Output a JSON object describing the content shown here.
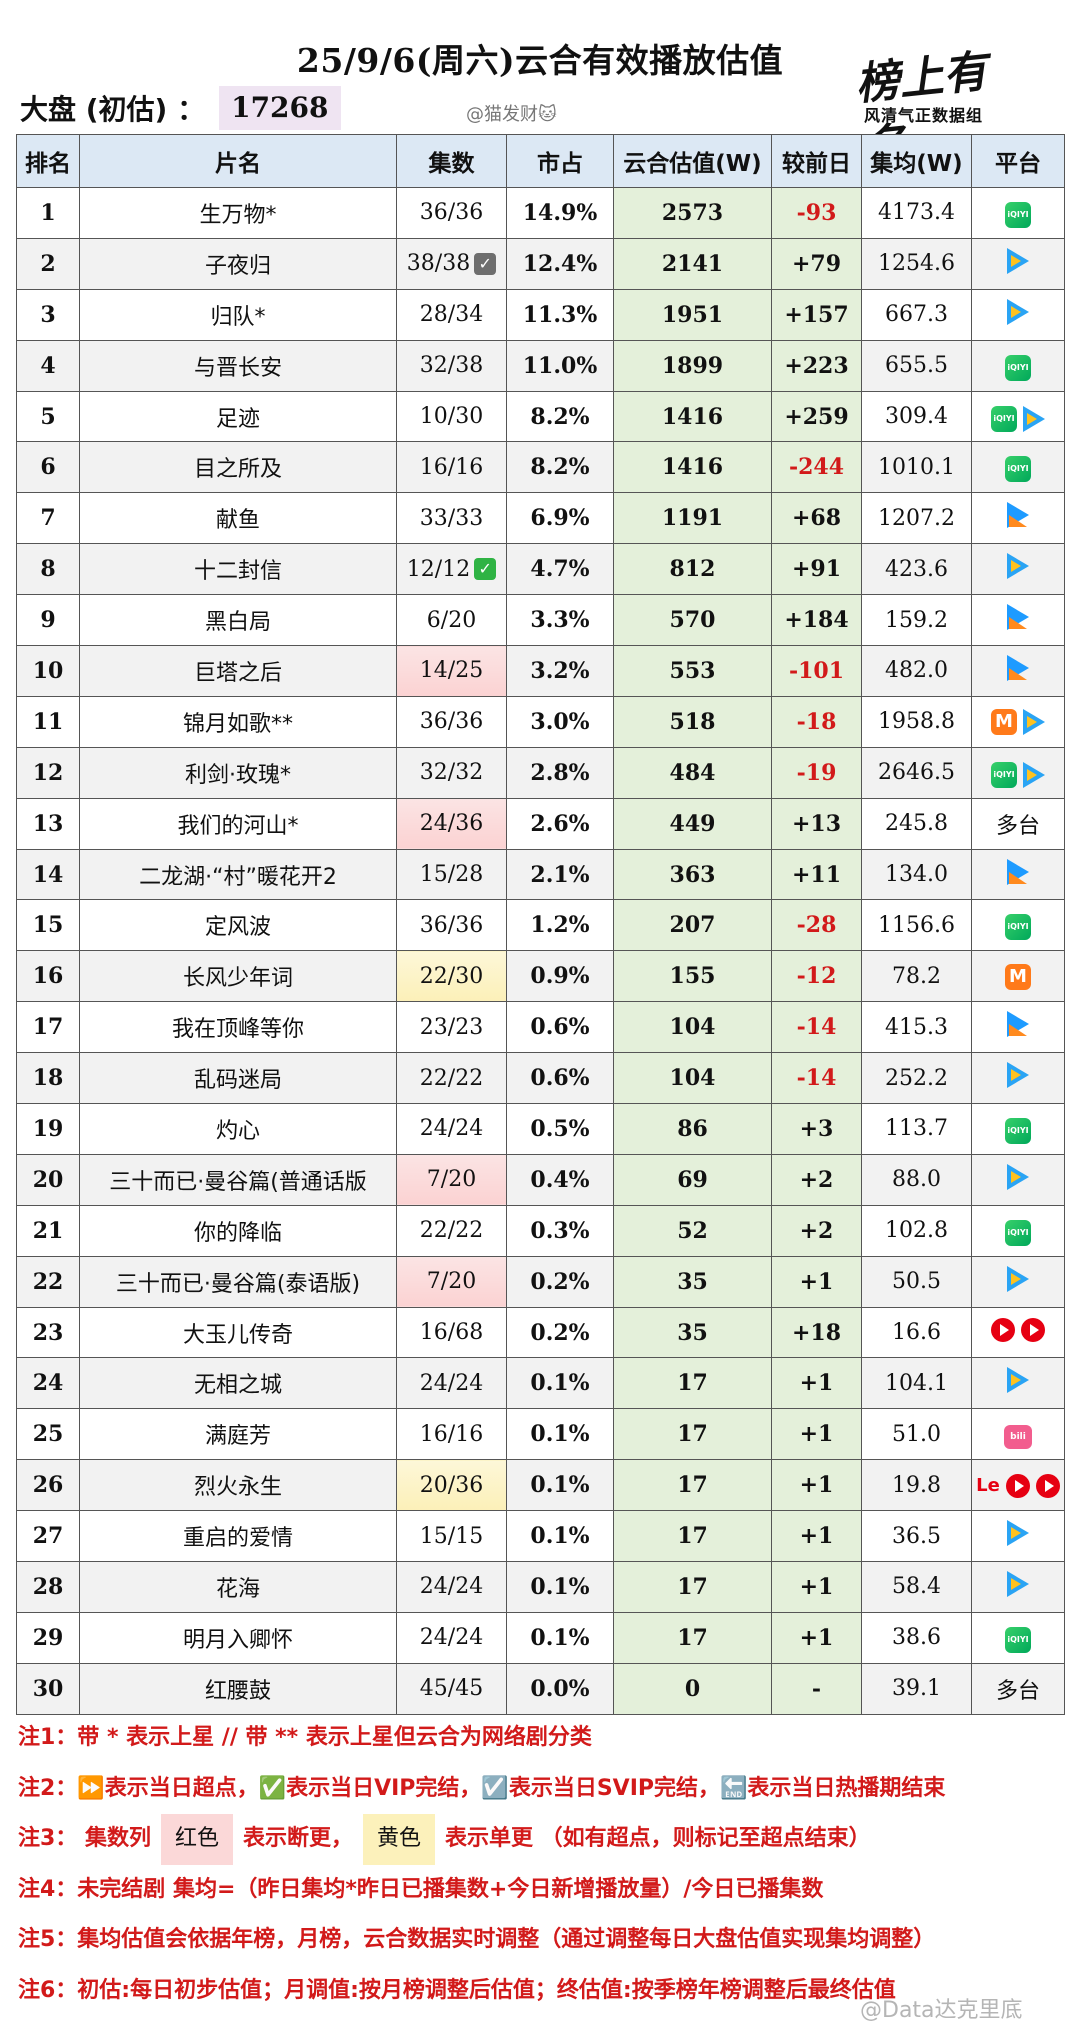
{
  "header": {
    "title": "25/9/6(周六)云合有效播放估值",
    "summary_label": "大盘 (初估) ：",
    "summary_value": "17268",
    "watermark": "@猫发财🐱",
    "logo_script": "榜上有名",
    "logo_sub": "风清气正数据组"
  },
  "table": {
    "columns": [
      "排名",
      "片名",
      "集数",
      "市占",
      "云合估值(W)",
      "较前日",
      "集均(W)",
      "平台"
    ],
    "rows": [
      {
        "rank": "1",
        "name": "生万物*",
        "episodes": "36/36",
        "share": "14.9%",
        "value": "2573",
        "diff": "-93",
        "avg": "4173.4",
        "platforms": [
          "iqiyi-icon"
        ]
      },
      {
        "rank": "2",
        "name": "子夜归",
        "episodes": "38/38",
        "ep_mark": "gray-check",
        "share": "12.4%",
        "value": "2141",
        "diff": "+79",
        "avg": "1254.6",
        "platforms": [
          "tencent-video-icon"
        ]
      },
      {
        "rank": "3",
        "name": "归队*",
        "episodes": "28/34",
        "share": "11.3%",
        "value": "1951",
        "diff": "+157",
        "avg": "667.3",
        "platforms": [
          "tencent-video-icon"
        ]
      },
      {
        "rank": "4",
        "name": "与晋长安",
        "episodes": "32/38",
        "share": "11.0%",
        "value": "1899",
        "diff": "+223",
        "avg": "655.5",
        "platforms": [
          "iqiyi-icon"
        ]
      },
      {
        "rank": "5",
        "name": "足迹",
        "episodes": "10/30",
        "share": "8.2%",
        "value": "1416",
        "diff": "+259",
        "avg": "309.4",
        "platforms": [
          "iqiyi-icon",
          "tencent-video-icon"
        ]
      },
      {
        "rank": "6",
        "name": "目之所及",
        "episodes": "16/16",
        "share": "8.2%",
        "value": "1416",
        "diff": "-244",
        "avg": "1010.1",
        "platforms": [
          "iqiyi-icon"
        ]
      },
      {
        "rank": "7",
        "name": "献鱼",
        "episodes": "33/33",
        "share": "6.9%",
        "value": "1191",
        "diff": "+68",
        "avg": "1207.2",
        "platforms": [
          "youku-icon"
        ]
      },
      {
        "rank": "8",
        "name": "十二封信",
        "episodes": "12/12",
        "ep_mark": "green-check",
        "share": "4.7%",
        "value": "812",
        "diff": "+91",
        "avg": "423.6",
        "platforms": [
          "tencent-video-icon"
        ]
      },
      {
        "rank": "9",
        "name": "黑白局",
        "episodes": "6/20",
        "share": "3.3%",
        "value": "570",
        "diff": "+184",
        "avg": "159.2",
        "platforms": [
          "youku-icon"
        ]
      },
      {
        "rank": "10",
        "name": "巨塔之后",
        "episodes": "14/25",
        "ep_color": "red",
        "share": "3.2%",
        "value": "553",
        "diff": "-101",
        "avg": "482.0",
        "platforms": [
          "youku-icon"
        ]
      },
      {
        "rank": "11",
        "name": "锦月如歌**",
        "episodes": "36/36",
        "share": "3.0%",
        "value": "518",
        "diff": "-18",
        "avg": "1958.8",
        "platforms": [
          "mango-tv-icon",
          "tencent-video-icon"
        ]
      },
      {
        "rank": "12",
        "name": "利剑·玫瑰*",
        "episodes": "32/32",
        "share": "2.8%",
        "value": "484",
        "diff": "-19",
        "avg": "2646.5",
        "platforms": [
          "iqiyi-icon",
          "tencent-video-icon"
        ]
      },
      {
        "rank": "13",
        "name": "我们的河山*",
        "episodes": "24/36",
        "ep_color": "red",
        "share": "2.6%",
        "value": "449",
        "diff": "+13",
        "avg": "245.8",
        "platforms_text": "多台"
      },
      {
        "rank": "14",
        "name": "二龙湖·“村”暖花开2",
        "episodes": "15/28",
        "share": "2.1%",
        "value": "363",
        "diff": "+11",
        "avg": "134.0",
        "platforms": [
          "youku-icon"
        ]
      },
      {
        "rank": "15",
        "name": "定风波",
        "episodes": "36/36",
        "share": "1.2%",
        "value": "207",
        "diff": "-28",
        "avg": "1156.6",
        "platforms": [
          "iqiyi-icon"
        ]
      },
      {
        "rank": "16",
        "name": "长风少年词",
        "episodes": "22/30",
        "ep_color": "yellow",
        "share": "0.9%",
        "value": "155",
        "diff": "-12",
        "avg": "78.2",
        "platforms": [
          "mango-tv-icon"
        ]
      },
      {
        "rank": "17",
        "name": "我在顶峰等你",
        "episodes": "23/23",
        "share": "0.6%",
        "value": "104",
        "diff": "-14",
        "avg": "415.3",
        "platforms": [
          "youku-icon"
        ]
      },
      {
        "rank": "18",
        "name": "乱码迷局",
        "episodes": "22/22",
        "share": "0.6%",
        "value": "104",
        "diff": "-14",
        "avg": "252.2",
        "platforms": [
          "tencent-video-icon"
        ]
      },
      {
        "rank": "19",
        "name": "灼心",
        "episodes": "24/24",
        "share": "0.5%",
        "value": "86",
        "diff": "+3",
        "avg": "113.7",
        "platforms": [
          "iqiyi-icon"
        ]
      },
      {
        "rank": "20",
        "name": "三十而已·曼谷篇(普通话版",
        "episodes": "7/20",
        "ep_color": "red",
        "share": "0.4%",
        "value": "69",
        "diff": "+2",
        "avg": "88.0",
        "platforms": [
          "tencent-video-icon"
        ]
      },
      {
        "rank": "21",
        "name": "你的降临",
        "episodes": "22/22",
        "share": "0.3%",
        "value": "52",
        "diff": "+2",
        "avg": "102.8",
        "platforms": [
          "iqiyi-icon"
        ]
      },
      {
        "rank": "22",
        "name": "三十而已·曼谷篇(泰语版)",
        "episodes": "7/20",
        "ep_color": "red",
        "share": "0.2%",
        "value": "35",
        "diff": "+1",
        "avg": "50.5",
        "platforms": [
          "tencent-video-icon"
        ]
      },
      {
        "rank": "23",
        "name": "大玉儿传奇",
        "episodes": "16/68",
        "share": "0.2%",
        "value": "35",
        "diff": "+18",
        "avg": "16.6",
        "platforms": [
          "mgtv-red-icon",
          "mgtv-red-icon"
        ]
      },
      {
        "rank": "24",
        "name": "无相之城",
        "episodes": "24/24",
        "share": "0.1%",
        "value": "17",
        "diff": "+1",
        "avg": "104.1",
        "platforms": [
          "tencent-video-icon"
        ]
      },
      {
        "rank": "25",
        "name": "满庭芳",
        "episodes": "16/16",
        "share": "0.1%",
        "value": "17",
        "diff": "+1",
        "avg": "51.0",
        "platforms": [
          "bilibili-icon"
        ]
      },
      {
        "rank": "26",
        "name": "烈火永生",
        "episodes": "20/36",
        "ep_color": "yellow",
        "share": "0.1%",
        "value": "17",
        "diff": "+1",
        "avg": "19.8",
        "platforms": [
          "letv-icon",
          "mgtv-red-icon",
          "mgtv-red-icon"
        ]
      },
      {
        "rank": "27",
        "name": "重启的爱情",
        "episodes": "15/15",
        "share": "0.1%",
        "value": "17",
        "diff": "+1",
        "avg": "36.5",
        "platforms": [
          "tencent-video-icon"
        ]
      },
      {
        "rank": "28",
        "name": "花海",
        "episodes": "24/24",
        "share": "0.1%",
        "value": "17",
        "diff": "+1",
        "avg": "58.4",
        "platforms": [
          "tencent-video-icon"
        ]
      },
      {
        "rank": "29",
        "name": "明月入卿怀",
        "episodes": "24/24",
        "share": "0.1%",
        "value": "17",
        "diff": "+1",
        "avg": "38.6",
        "platforms": [
          "iqiyi-icon"
        ]
      },
      {
        "rank": "30",
        "name": "红腰鼓",
        "episodes": "45/45",
        "share": "0.0%",
        "value": "0",
        "diff": "-",
        "avg": "39.1",
        "platforms_text": "多台"
      }
    ]
  },
  "notes": {
    "n1": "注1：带 * 表示上星 // 带 ** 表示上星但云合为网络剧分类",
    "n2": "注2：⏩表示当日超点，✅表示当日VIP完结，☑️表示当日SVIP完结，🔚表示当日热播期结束",
    "n3_prefix": "注3：  集数列",
    "n3_red": "红色",
    "n3_mid": "表示断更，",
    "n3_yellow": "黄色",
    "n3_suffix": "表示单更 （如有超点，则标记至超点结束）",
    "n4": "注4：未完结剧 集均=（昨日集均*昨日已播集数+今日新增播放量）/今日已播集数",
    "n5": "注5：集均估值会依据年榜，月榜，云合数据实时调整（通过调整每日大盘估值实现集均调整）",
    "n6": "注6：初估:每日初步估值；月调值:按月榜调整后估值；终估值:按季榜年榜调整后最终估值"
  },
  "watermark_bottom": "@Data达克里底",
  "colors": {
    "header_bg": "#dce8f4",
    "value_bg": "#e4f0da",
    "negative": "#d21a1a",
    "note_red": "#d21a1a",
    "summary_bg": "#efe4f2"
  }
}
